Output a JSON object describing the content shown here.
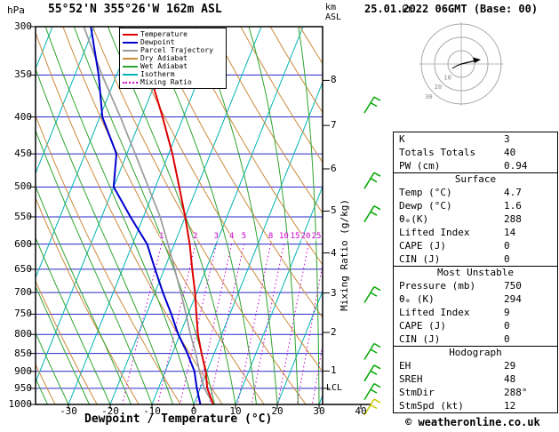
{
  "header": {
    "pressure_unit": "hPa",
    "station": "55°52'N 355°26'W 162m ASL",
    "altitude_unit_top": "km",
    "altitude_unit_sub": "ASL",
    "datetime": "25.01.2022 06GMT (Base: 00)"
  },
  "axes": {
    "pressure_ticks": [
      300,
      350,
      400,
      450,
      500,
      550,
      600,
      650,
      700,
      750,
      800,
      850,
      900,
      950,
      1000
    ],
    "km_ticks": [
      8,
      7,
      6,
      5,
      4,
      3,
      2,
      1
    ],
    "lcl_label": "LCL",
    "temp_ticks": [
      -30,
      -20,
      -10,
      0,
      10,
      20,
      30,
      40
    ],
    "xlabel": "Dewpoint / Temperature (°C)",
    "mixing_ratio_axis_label": "Mixing Ratio (g/kg)",
    "mixing_ratio_values": [
      1,
      2,
      3,
      4,
      5,
      8,
      10,
      15,
      20,
      25
    ]
  },
  "legend": [
    {
      "label": "Temperature",
      "color": "#dd0000",
      "dashed": false
    },
    {
      "label": "Dewpoint",
      "color": "#0000cc",
      "dashed": false
    },
    {
      "label": "Parcel Trajectory",
      "color": "#9a9a9a",
      "dashed": false
    },
    {
      "label": "Dry Adiabat",
      "color": "#cc8a3d",
      "dashed": false
    },
    {
      "label": "Wet Adiabat",
      "color": "#2fa42f",
      "dashed": false
    },
    {
      "label": "Isotherm",
      "color": "#00b4b4",
      "dashed": false
    },
    {
      "label": "Mixing Ratio",
      "color": "#cc00cc",
      "dashed": true
    }
  ],
  "hodograph": {
    "kt_label": "kt",
    "ring_labels": [
      10,
      20,
      30
    ]
  },
  "stats": {
    "rows_top": [
      [
        "K",
        "3"
      ],
      [
        "Totals Totals",
        "40"
      ],
      [
        "PW (cm)",
        "0.94"
      ]
    ],
    "sections": [
      {
        "title": "Surface",
        "rows": [
          [
            "Temp (°C)",
            "4.7"
          ],
          [
            "Dewp (°C)",
            "1.6"
          ],
          [
            "θₑ(K)",
            "288"
          ],
          [
            "Lifted Index",
            "14"
          ],
          [
            "CAPE (J)",
            "0"
          ],
          [
            "CIN (J)",
            "0"
          ]
        ]
      },
      {
        "title": "Most Unstable",
        "rows": [
          [
            "Pressure (mb)",
            "750"
          ],
          [
            "θₑ (K)",
            "294"
          ],
          [
            "Lifted Index",
            "9"
          ],
          [
            "CAPE (J)",
            "0"
          ],
          [
            "CIN (J)",
            "0"
          ]
        ]
      },
      {
        "title": "Hodograph",
        "rows": [
          [
            "EH",
            "29"
          ],
          [
            "SREH",
            "48"
          ],
          [
            "StmDir",
            "288°"
          ],
          [
            "StmSpd (kt)",
            "12"
          ]
        ]
      }
    ]
  },
  "footer": {
    "copyright": "© weatheronline.co.uk"
  },
  "colors": {
    "isotherm": "#00b4b4",
    "dry_adiabat": "#cc8a3d",
    "wet_adiabat": "#2fa42f",
    "mixing_ratio": "#cc00cc",
    "pressure_line": "#2a2acc",
    "temperature": "#dd0000",
    "dewpoint": "#0000cc",
    "parcel": "#9a9a9a",
    "barb": "#00a800",
    "barb_surface": "#c8c800",
    "border": "#000000",
    "hodograph_ring": "#a8a8a8"
  },
  "chart_data": {
    "type": "line",
    "title": "Skew-T log-P sounding 55°52'N 355°26'W 162m ASL 25.01.2022 06GMT",
    "xlabel": "Dewpoint / Temperature (°C)",
    "ylabel": "Pressure (hPa)",
    "x_range_c": [
      -40,
      40
    ],
    "pressure_range_hpa": [
      1000,
      300
    ],
    "pressure_levels": [
      1000,
      950,
      900,
      850,
      800,
      750,
      700,
      650,
      600,
      550,
      500,
      450,
      400,
      350,
      300
    ],
    "series": [
      {
        "name": "Temperature",
        "color": "#dd0000",
        "values_c": [
          4.7,
          1.7,
          -0.3,
          -3.0,
          -5.7,
          -8.0,
          -10.4,
          -13.3,
          -16.3,
          -20.0,
          -24.3,
          -29.1,
          -35.0,
          -42.0,
          -54.0
        ]
      },
      {
        "name": "Dewpoint",
        "color": "#0000cc",
        "values_c": [
          1.6,
          -0.8,
          -3.0,
          -6.4,
          -10.4,
          -14.0,
          -18.1,
          -22.2,
          -26.5,
          -33.1,
          -40.0,
          -42.5,
          -49.4,
          -54.3,
          -60.8
        ]
      },
      {
        "name": "Parcel Trajectory",
        "color": "#9a9a9a",
        "values_c": [
          4.7,
          1.0,
          -1.8,
          -4.4,
          -7.5,
          -10.5,
          -13.8,
          -17.5,
          -21.5,
          -26.0,
          -31.7,
          -38.0,
          -45.1,
          -53.5,
          -62.5
        ]
      }
    ],
    "wind_barbs": {
      "pressures_hpa": [
        385,
        490,
        545,
        705,
        845,
        905,
        960
      ],
      "surface_pressure_hpa": 1000
    },
    "isotherm_step_c": 10,
    "dry_adiabat_step_k": 10,
    "wet_adiabat_step_c": 5,
    "mixing_ratio_lines_gkg": [
      1,
      2,
      3,
      4,
      5,
      8,
      10,
      15,
      20,
      25
    ],
    "grid": true,
    "legend_position": "top-center-inside"
  }
}
